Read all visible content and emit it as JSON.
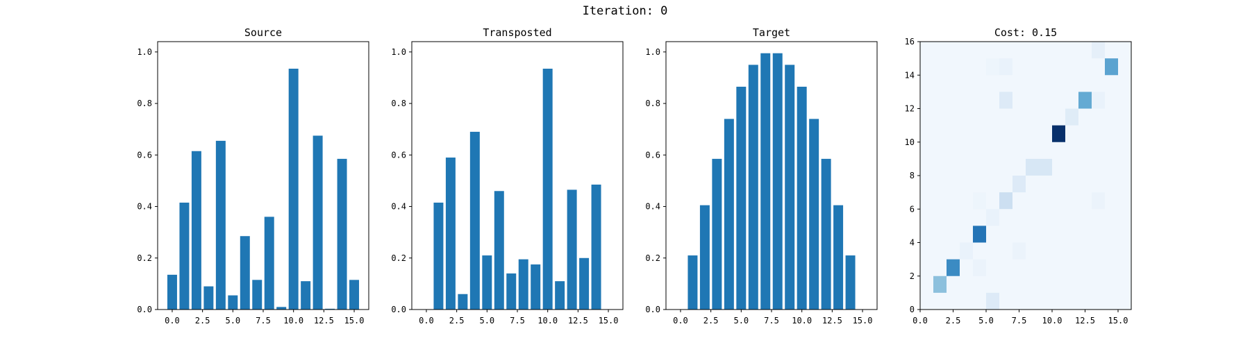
{
  "figure": {
    "suptitle": "Iteration: 0",
    "bar_color": "#1f77b4",
    "colormap": "Blues"
  },
  "chart_data": [
    {
      "type": "bar",
      "title": "Source",
      "x": [
        0,
        1,
        2,
        3,
        4,
        5,
        6,
        7,
        8,
        9,
        10,
        11,
        12,
        13,
        14,
        15
      ],
      "values": [
        0.135,
        0.415,
        0.615,
        0.09,
        0.655,
        0.055,
        0.285,
        0.115,
        0.36,
        0.01,
        0.935,
        0.11,
        0.675,
        0.003,
        0.585,
        0.115
      ],
      "xlim": [
        -1.2,
        16.2
      ],
      "ylim": [
        0,
        1.04
      ],
      "xticks": [
        0.0,
        2.5,
        5.0,
        7.5,
        10.0,
        12.5,
        15.0
      ],
      "xtick_labels": [
        "0.0",
        "2.5",
        "5.0",
        "7.5",
        "10.0",
        "12.5",
        "15.0"
      ],
      "yticks": [
        0.0,
        0.2,
        0.4,
        0.6,
        0.8,
        1.0
      ],
      "ytick_labels": [
        "0.0",
        "0.2",
        "0.4",
        "0.6",
        "0.8",
        "1.0"
      ]
    },
    {
      "type": "bar",
      "title": "Transposted",
      "x": [
        0,
        1,
        2,
        3,
        4,
        5,
        6,
        7,
        8,
        9,
        10,
        11,
        12,
        13,
        14,
        15
      ],
      "values": [
        0.0,
        0.415,
        0.59,
        0.06,
        0.69,
        0.21,
        0.46,
        0.14,
        0.195,
        0.175,
        0.935,
        0.11,
        0.465,
        0.2,
        0.485,
        0.0
      ],
      "xlim": [
        -1.2,
        16.2
      ],
      "ylim": [
        0,
        1.04
      ],
      "xticks": [
        0.0,
        2.5,
        5.0,
        7.5,
        10.0,
        12.5,
        15.0
      ],
      "xtick_labels": [
        "0.0",
        "2.5",
        "5.0",
        "7.5",
        "10.0",
        "12.5",
        "15.0"
      ],
      "yticks": [
        0.0,
        0.2,
        0.4,
        0.6,
        0.8,
        1.0
      ],
      "ytick_labels": [
        "0.0",
        "0.2",
        "0.4",
        "0.6",
        "0.8",
        "1.0"
      ]
    },
    {
      "type": "bar",
      "title": "Target",
      "x": [
        0,
        1,
        2,
        3,
        4,
        5,
        6,
        7,
        8,
        9,
        10,
        11,
        12,
        13,
        14,
        15
      ],
      "values": [
        0.0,
        0.21,
        0.405,
        0.585,
        0.74,
        0.865,
        0.95,
        0.995,
        0.995,
        0.95,
        0.865,
        0.74,
        0.585,
        0.405,
        0.21,
        0.0
      ],
      "xlim": [
        -1.2,
        16.2
      ],
      "ylim": [
        0,
        1.04
      ],
      "xticks": [
        0.0,
        2.5,
        5.0,
        7.5,
        10.0,
        12.5,
        15.0
      ],
      "xtick_labels": [
        "0.0",
        "2.5",
        "5.0",
        "7.5",
        "10.0",
        "12.5",
        "15.0"
      ],
      "yticks": [
        0.0,
        0.2,
        0.4,
        0.6,
        0.8,
        1.0
      ],
      "ytick_labels": [
        "0.0",
        "0.2",
        "0.4",
        "0.6",
        "0.8",
        "1.0"
      ]
    },
    {
      "type": "heatmap",
      "title": "Cost: 0.15",
      "colormap": "Blues",
      "grid_size": 16,
      "xlim": [
        0,
        16
      ],
      "ylim": [
        0,
        16
      ],
      "xticks": [
        0.0,
        2.5,
        5.0,
        7.5,
        10.0,
        12.5,
        15.0
      ],
      "xtick_labels": [
        "0.0",
        "2.5",
        "5.0",
        "7.5",
        "10.0",
        "12.5",
        "15.0"
      ],
      "yticks": [
        0,
        2,
        4,
        6,
        8,
        10,
        12,
        14,
        16
      ],
      "ytick_labels": [
        "0",
        "2",
        "4",
        "6",
        "8",
        "10",
        "12",
        "14",
        "16"
      ],
      "background_intensity": 0.03,
      "cells": [
        {
          "x": 5,
          "y": 0,
          "v": 0.13
        },
        {
          "x": 1,
          "y": 1,
          "v": 0.42
        },
        {
          "x": 2,
          "y": 2,
          "v": 0.65
        },
        {
          "x": 4,
          "y": 2,
          "v": 0.06
        },
        {
          "x": 3,
          "y": 3,
          "v": 0.07
        },
        {
          "x": 7,
          "y": 3,
          "v": 0.06
        },
        {
          "x": 4,
          "y": 4,
          "v": 0.74
        },
        {
          "x": 5,
          "y": 5,
          "v": 0.07
        },
        {
          "x": 6,
          "y": 6,
          "v": 0.22
        },
        {
          "x": 4,
          "y": 6,
          "v": 0.05
        },
        {
          "x": 13,
          "y": 6,
          "v": 0.06
        },
        {
          "x": 7,
          "y": 7,
          "v": 0.13
        },
        {
          "x": 8,
          "y": 8,
          "v": 0.16
        },
        {
          "x": 9,
          "y": 8,
          "v": 0.16
        },
        {
          "x": 10,
          "y": 10,
          "v": 1.0
        },
        {
          "x": 11,
          "y": 11,
          "v": 0.12
        },
        {
          "x": 6,
          "y": 12,
          "v": 0.13
        },
        {
          "x": 12,
          "y": 12,
          "v": 0.52
        },
        {
          "x": 13,
          "y": 12,
          "v": 0.07
        },
        {
          "x": 5,
          "y": 14,
          "v": 0.05
        },
        {
          "x": 6,
          "y": 14,
          "v": 0.07
        },
        {
          "x": 14,
          "y": 14,
          "v": 0.55
        },
        {
          "x": 13,
          "y": 15,
          "v": 0.09
        }
      ]
    }
  ]
}
